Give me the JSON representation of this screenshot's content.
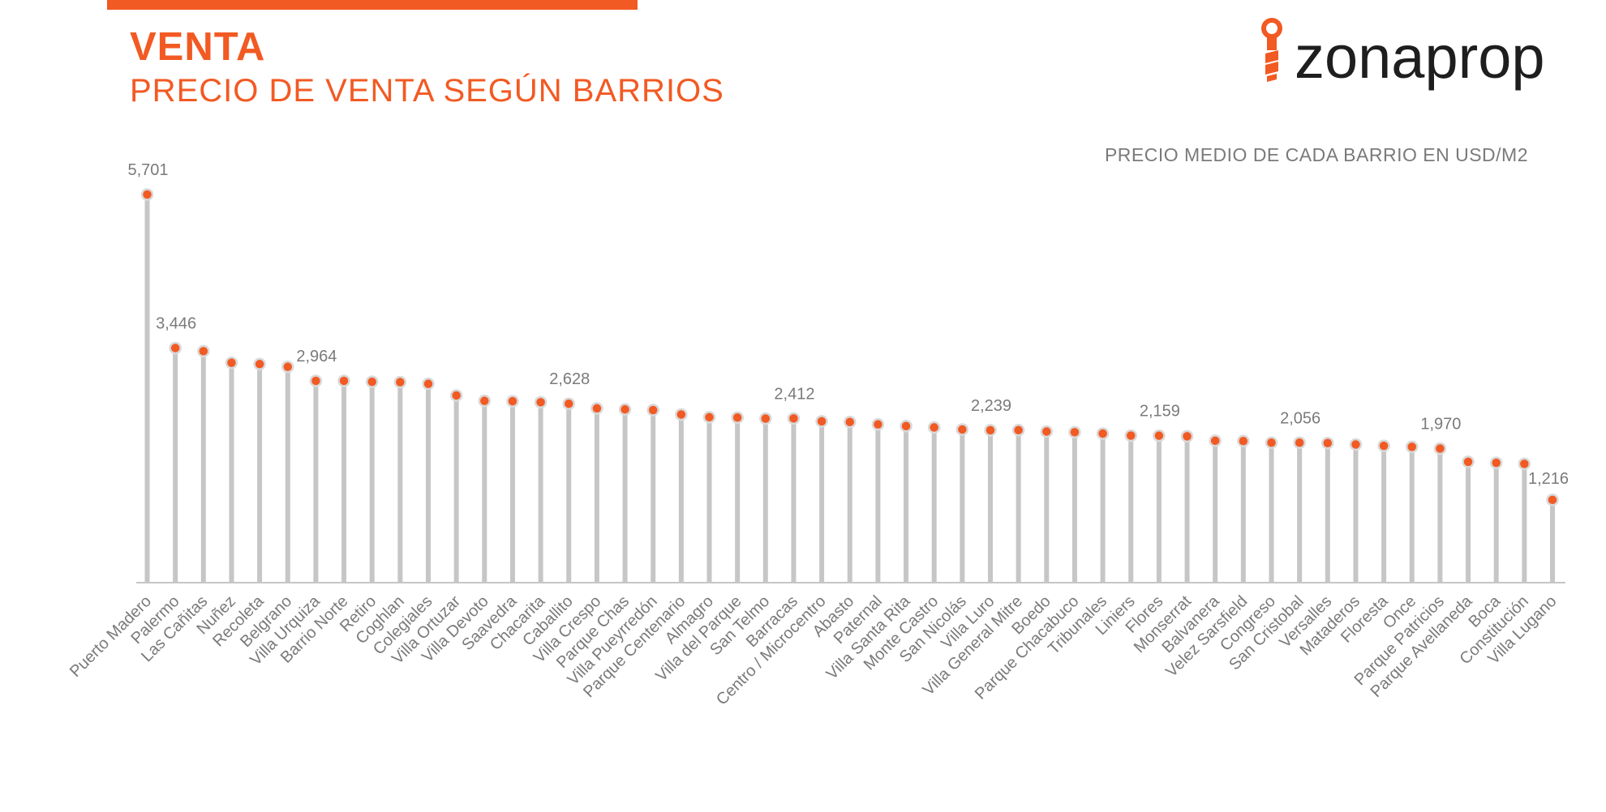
{
  "header": {
    "title": "VENTA",
    "subtitle": "PRECIO DE VENTA SEGÚN BARRIOS"
  },
  "logo": {
    "text": "zonaprop",
    "icon": "key-icon"
  },
  "colors": {
    "accent": "#f25a23",
    "stem": "#c6c6c6",
    "axis": "#c6c6c6",
    "text": "#7a7a7a"
  },
  "chart_data": {
    "type": "lollipop",
    "title": "PRECIO MEDIO DE CADA BARRIO EN USD/M2",
    "ylim": [
      0,
      5701
    ],
    "grid": false,
    "categories": [
      "Puerto Madero",
      "Palermo",
      "Las Cañitas",
      "Nuñez",
      "Recoleta",
      "Belgrano",
      "Villa Urquiza",
      "Barrio Norte",
      "Retiro",
      "Coghlan",
      "Colegiales",
      "Villa Ortuzar",
      "Villa Devoto",
      "Saavedra",
      "Chacarita",
      "Caballito",
      "Villa Crespo",
      "Parque Chas",
      "Villa Pueyrredón",
      "Parque Centenario",
      "Almagro",
      "Villa del Parque",
      "San Telmo",
      "Barracas",
      "Centro / Microcentro",
      "Abasto",
      "Paternal",
      "Villa Santa Rita",
      "Monte Castro",
      "San Nicolás",
      "Villa Luro",
      "Villa General Mitre",
      "Boedo",
      "Parque Chacabuco",
      "Tribunales",
      "Liniers",
      "Flores",
      "Monserrat",
      "Balvanera",
      "Velez Sarsfield",
      "Congreso",
      "San Cristobal",
      "Versalles",
      "Mataderos",
      "Floresta",
      "Once",
      "Parque Patricios",
      "Parque Avellaneda",
      "Boca",
      "Constitución",
      "Villa Lugano"
    ],
    "values": [
      5701,
      3446,
      3400,
      3230,
      3210,
      3170,
      2964,
      2964,
      2950,
      2945,
      2920,
      2750,
      2670,
      2665,
      2650,
      2628,
      2560,
      2545,
      2535,
      2470,
      2430,
      2425,
      2410,
      2412,
      2370,
      2360,
      2325,
      2300,
      2280,
      2250,
      2239,
      2240,
      2220,
      2210,
      2190,
      2160,
      2159,
      2150,
      2085,
      2080,
      2056,
      2056,
      2050,
      2030,
      2010,
      1995,
      1970,
      1775,
      1760,
      1745,
      1216
    ],
    "data_labels": [
      {
        "category": "Puerto Madero",
        "text": "5,701"
      },
      {
        "category": "Palermo",
        "text": "3,446"
      },
      {
        "category": "Villa Urquiza",
        "text": "2,964"
      },
      {
        "category": "Caballito",
        "text": "2,628"
      },
      {
        "category": "Barracas",
        "text": "2,412"
      },
      {
        "category": "Villa Luro",
        "text": "2,239"
      },
      {
        "category": "Flores",
        "text": "2,159"
      },
      {
        "category": "San Cristobal",
        "text": "2,056"
      },
      {
        "category": "Parque Patricios",
        "text": "1,970"
      },
      {
        "category": "Villa Lugano",
        "text": "1,216"
      }
    ]
  }
}
